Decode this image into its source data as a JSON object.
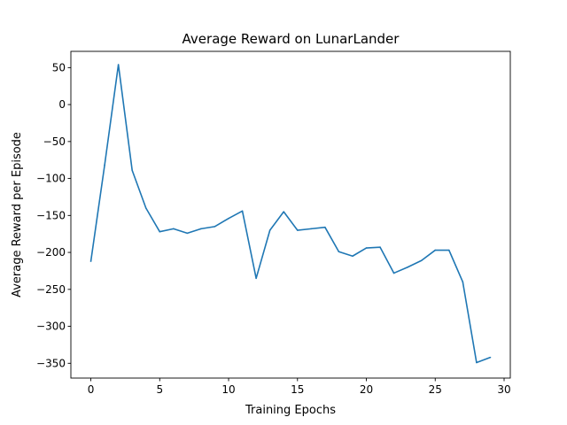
{
  "chart_data": {
    "type": "line",
    "title": "Average Reward on LunarLander",
    "xlabel": "Training Epochs",
    "ylabel": "Average Reward per Episode",
    "xlim": [
      -1.45,
      30.45
    ],
    "ylim": [
      -370,
      72
    ],
    "xticks": [
      0,
      5,
      10,
      15,
      20,
      25,
      30
    ],
    "yticks": [
      50,
      0,
      -50,
      -100,
      -150,
      -200,
      -250,
      -300,
      -350
    ],
    "grid": false,
    "series": [
      {
        "color": "#1f77b4",
        "x": [
          0,
          1,
          2,
          3,
          4,
          5,
          6,
          7,
          8,
          9,
          10,
          11,
          12,
          13,
          14,
          15,
          16,
          17,
          18,
          19,
          20,
          21,
          22,
          23,
          24,
          25,
          26,
          27,
          28,
          29
        ],
        "y": [
          -212,
          -82,
          54,
          -89,
          -140,
          -172,
          -168,
          -174,
          -168,
          -165,
          -154,
          -144,
          -235,
          -170,
          -145,
          -170,
          -168,
          -166,
          -199,
          -205,
          -194,
          -193,
          -228,
          -220,
          -211,
          -197,
          -197,
          -240,
          -349,
          -342
        ]
      }
    ]
  }
}
